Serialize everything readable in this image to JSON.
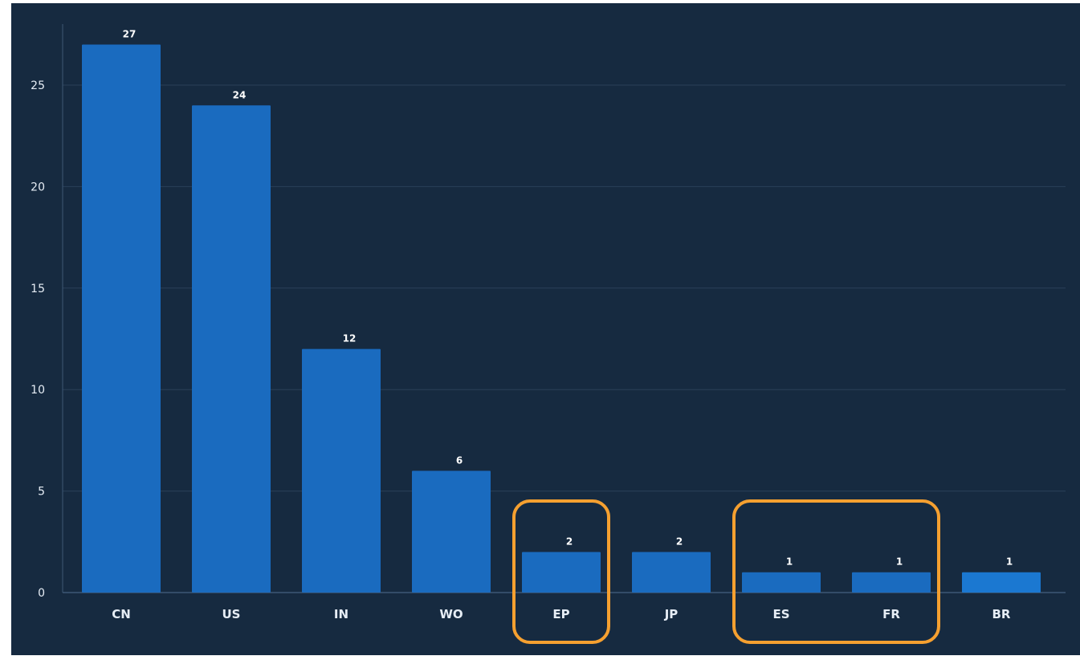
{
  "chart_data": {
    "type": "bar",
    "title": "",
    "xlabel": "",
    "ylabel": "",
    "categories": [
      "CN",
      "US",
      "IN",
      "WO",
      "EP",
      "JP",
      "ES",
      "FR",
      "BR"
    ],
    "values": [
      27,
      24,
      12,
      6,
      2,
      2,
      1,
      1,
      1
    ],
    "data_labels": [
      "27",
      "24",
      "12",
      "6",
      "2",
      "2",
      "1",
      "1",
      "1"
    ],
    "ylim": [
      0,
      28
    ],
    "yticks": [
      0,
      5,
      10,
      15,
      20,
      25
    ],
    "ytick_labels": [
      "0",
      "5",
      "10",
      "15",
      "20",
      "25"
    ],
    "grid": true,
    "legend": "none",
    "highlighted_categories": [
      [
        "EP"
      ],
      [
        "ES",
        "FR"
      ]
    ]
  },
  "colors": {
    "background": "#162a40",
    "bar": "#1a6bbf",
    "bar_last": "#1b78d1",
    "gridline": "#2a4058",
    "axis": "#3d5875",
    "text": "#e6edf5",
    "highlight": "#f5a030"
  }
}
